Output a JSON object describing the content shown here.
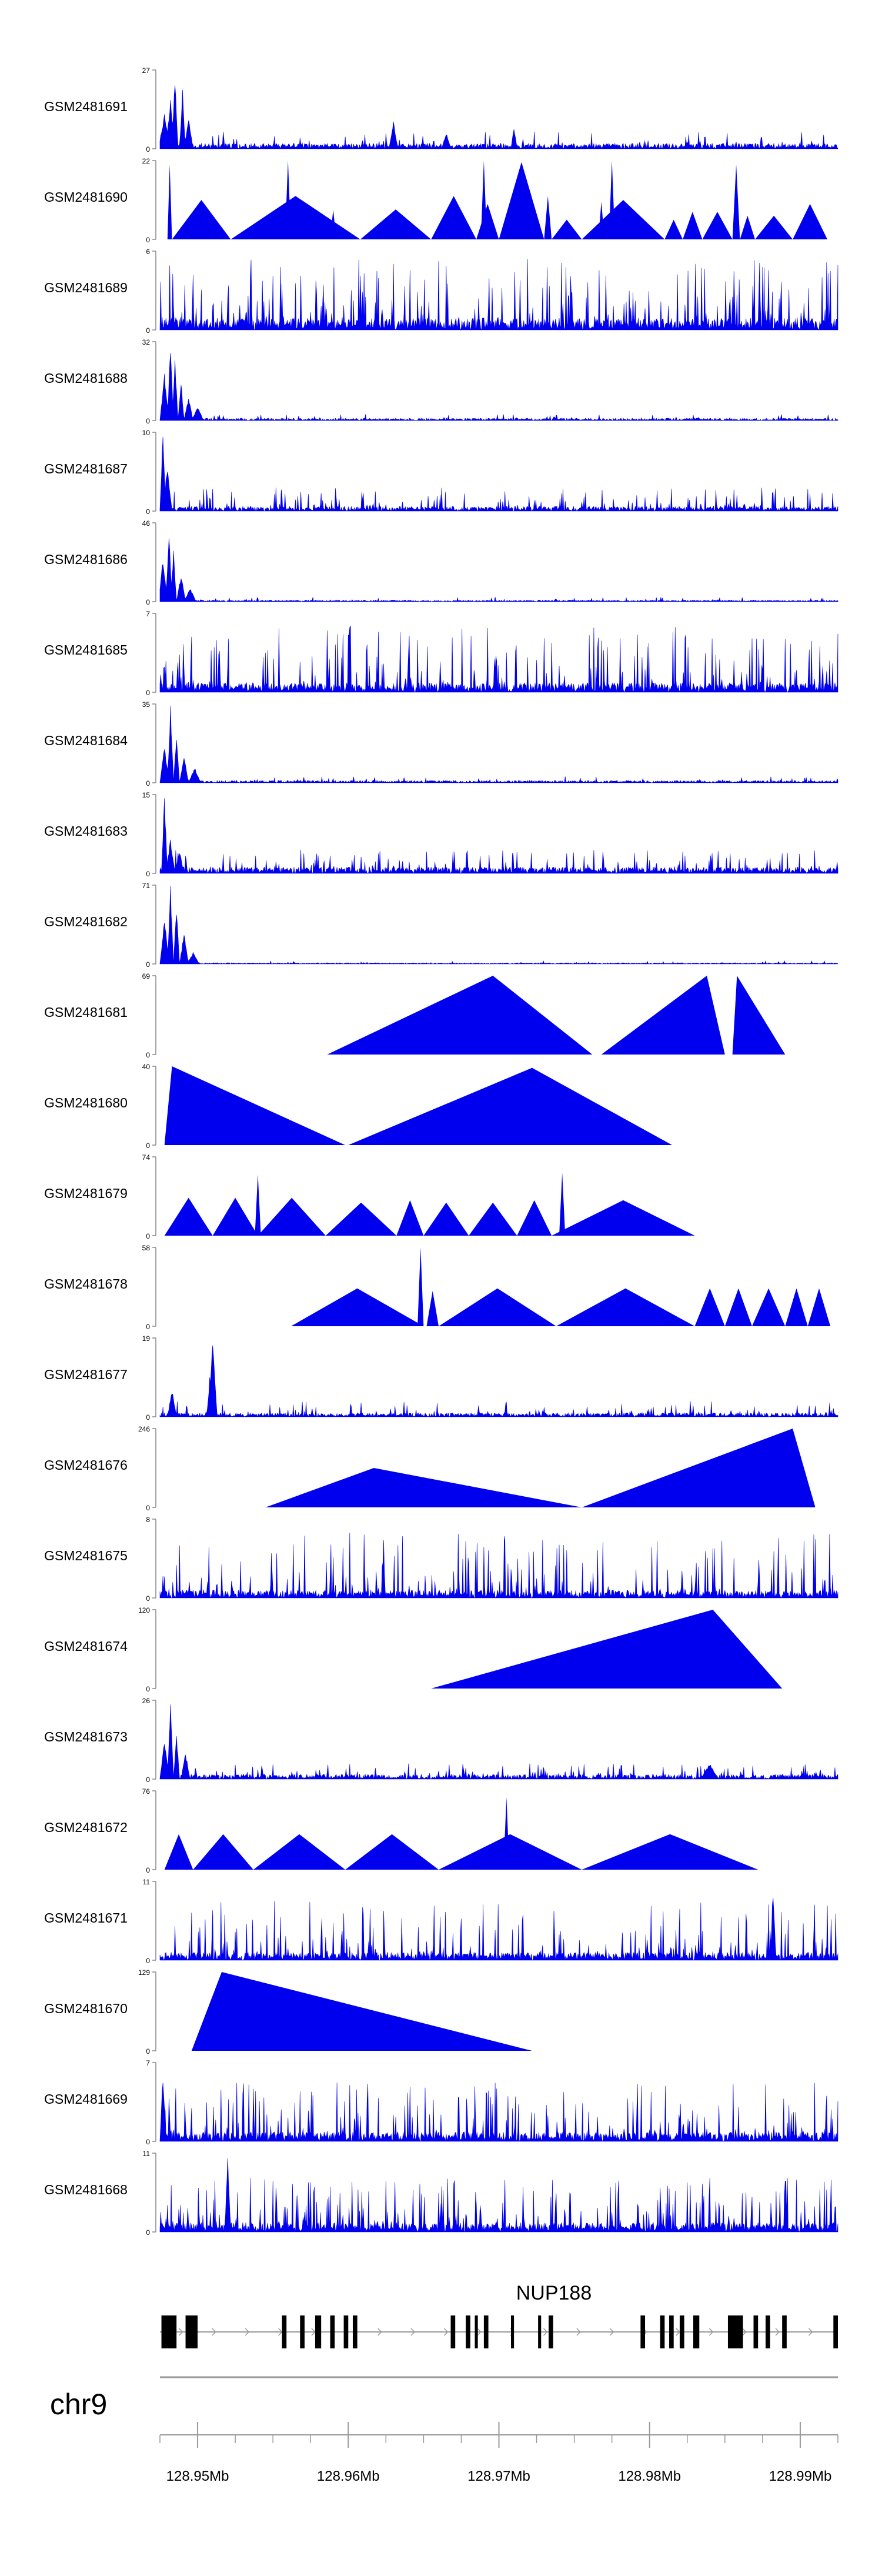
{
  "chart_data": {
    "type": "area",
    "chromosome": "chr9",
    "x_range_mb": [
      128.9475,
      128.9925
    ],
    "x_ticks_mb": [
      128.95,
      128.96,
      128.97,
      128.98,
      128.99
    ],
    "x_tick_labels": [
      "128.95Mb",
      "128.96Mb",
      "128.97Mb",
      "128.98Mb",
      "128.99Mb"
    ],
    "fill_color": "#0000ee",
    "tracks": [
      {
        "name": "GSM2481691",
        "ymax": 27,
        "ymax_label": "27",
        "ymin_label": "0",
        "pattern": "spiky",
        "seed": 1,
        "base": 0.07,
        "spike": 0.22,
        "dens": 0.35,
        "peaks": [
          [
            128.9478,
            0.45,
            0.0004
          ],
          [
            128.9482,
            0.65,
            0.0003
          ],
          [
            128.9485,
            1.0,
            0.0002
          ],
          [
            128.949,
            0.75,
            0.0002
          ],
          [
            128.9494,
            0.4,
            0.0003
          ],
          [
            128.963,
            0.35,
            0.0003
          ],
          [
            128.971,
            0.3,
            0.0002
          ],
          [
            128.9665,
            0.22,
            0.0003
          ]
        ]
      },
      {
        "name": "GSM2481690",
        "ymax": 22,
        "ymax_label": "22",
        "ymin_label": "0",
        "pattern": "triangles",
        "segments": [
          [
            128.948,
            128.9483,
            0.95
          ],
          [
            128.9483,
            128.9522,
            0.5
          ],
          [
            128.9522,
            128.9608,
            0.55
          ],
          [
            128.9608,
            128.9655,
            0.38
          ],
          [
            128.9655,
            128.9685,
            0.55
          ],
          [
            128.9685,
            128.97,
            0.45
          ],
          [
            128.97,
            128.973,
            0.98
          ],
          [
            128.973,
            128.9735,
            0.55
          ],
          [
            128.9735,
            128.9755,
            0.25
          ],
          [
            128.9755,
            128.981,
            0.5
          ],
          [
            128.981,
            128.9822,
            0.25
          ],
          [
            128.9822,
            128.9835,
            0.35
          ],
          [
            128.9835,
            128.9855,
            0.35
          ],
          [
            128.9855,
            128.986,
            0.95
          ],
          [
            128.986,
            128.987,
            0.3
          ],
          [
            128.987,
            128.9895,
            0.3
          ],
          [
            128.9895,
            128.9918,
            0.45
          ]
        ],
        "spikes": [
          [
            128.956,
            1.0
          ],
          [
            128.959,
            0.38
          ],
          [
            128.969,
            1.0
          ],
          [
            128.9768,
            0.48
          ],
          [
            128.9775,
            1.0
          ]
        ]
      },
      {
        "name": "GSM2481689",
        "ymax": 6,
        "ymax_label": "6",
        "ymin_label": "0",
        "pattern": "spiky",
        "seed": 3,
        "base": 0.15,
        "spike": 0.9,
        "dens": 0.85,
        "peaks": []
      },
      {
        "name": "GSM2481688",
        "ymax": 32,
        "ymax_label": "32",
        "ymin_label": "0",
        "pattern": "spiky",
        "seed": 4,
        "base": 0.03,
        "spike": 0.08,
        "dens": 0.3,
        "peaks": [
          [
            128.9478,
            0.6,
            0.0003
          ],
          [
            128.9482,
            1.0,
            0.0002
          ],
          [
            128.9485,
            0.8,
            0.0002
          ],
          [
            128.9489,
            0.55,
            0.0002
          ],
          [
            128.9494,
            0.3,
            0.0003
          ],
          [
            128.95,
            0.18,
            0.0004
          ]
        ]
      },
      {
        "name": "GSM2481687",
        "ymax": 10,
        "ymax_label": "10",
        "ymin_label": "0",
        "pattern": "spiky",
        "seed": 5,
        "base": 0.06,
        "spike": 0.3,
        "dens": 0.55,
        "peaks": [
          [
            128.9477,
            1.0,
            0.0002
          ],
          [
            128.948,
            0.6,
            0.0003
          ]
        ]
      },
      {
        "name": "GSM2481686",
        "ymax": 46,
        "ymax_label": "46",
        "ymin_label": "0",
        "pattern": "spiky",
        "seed": 6,
        "base": 0.02,
        "spike": 0.06,
        "dens": 0.3,
        "peaks": [
          [
            128.9477,
            0.55,
            0.0003
          ],
          [
            128.9481,
            1.0,
            0.0002
          ],
          [
            128.9484,
            0.65,
            0.0002
          ],
          [
            128.9489,
            0.35,
            0.0003
          ],
          [
            128.9495,
            0.18,
            0.0004
          ]
        ]
      },
      {
        "name": "GSM2481685",
        "ymax": 7,
        "ymax_label": "7",
        "ymin_label": "0",
        "pattern": "spiky",
        "seed": 7,
        "base": 0.12,
        "spike": 0.85,
        "dens": 0.75,
        "peaks": []
      },
      {
        "name": "GSM2481684",
        "ymax": 35,
        "ymax_label": "35",
        "ymin_label": "0",
        "pattern": "spiky",
        "seed": 8,
        "base": 0.03,
        "spike": 0.08,
        "dens": 0.3,
        "peaks": [
          [
            128.9478,
            0.5,
            0.0003
          ],
          [
            128.9482,
            1.0,
            0.0002
          ],
          [
            128.9486,
            0.6,
            0.0002
          ],
          [
            128.9491,
            0.35,
            0.0003
          ],
          [
            128.9498,
            0.2,
            0.0004
          ]
        ]
      },
      {
        "name": "GSM2481683",
        "ymax": 15,
        "ymax_label": "15",
        "ymin_label": "0",
        "pattern": "spiky",
        "seed": 9,
        "base": 0.08,
        "spike": 0.3,
        "dens": 0.55,
        "peaks": [
          [
            128.9478,
            1.0,
            0.0002
          ],
          [
            128.9482,
            0.45,
            0.0003
          ],
          [
            128.9488,
            0.3,
            0.0003
          ]
        ]
      },
      {
        "name": "GSM2481682",
        "ymax": 71,
        "ymax_label": "71",
        "ymin_label": "0",
        "pattern": "spiky",
        "seed": 10,
        "base": 0.015,
        "spike": 0.04,
        "dens": 0.25,
        "peaks": [
          [
            128.9478,
            0.6,
            0.0003
          ],
          [
            128.9482,
            1.0,
            0.0002
          ],
          [
            128.9486,
            0.75,
            0.0002
          ],
          [
            128.9491,
            0.4,
            0.0003
          ],
          [
            128.9497,
            0.15,
            0.0004
          ]
        ]
      },
      {
        "name": "GSM2481681",
        "ymax": 69,
        "ymax_label": "69",
        "ymin_label": "0",
        "pattern": "triangles",
        "segments": [
          [
            128.9586,
            128.9762,
            1.0
          ],
          [
            128.9768,
            128.985,
            1.0
          ],
          [
            128.9855,
            128.989,
            1.0
          ]
        ],
        "apex": [
          128.9696,
          128.9838,
          128.9858
        ]
      },
      {
        "name": "GSM2481680",
        "ymax": 40,
        "ymax_label": "40",
        "ymin_label": "0",
        "pattern": "triangles",
        "segments": [
          [
            128.9478,
            128.9598,
            1.0
          ],
          [
            128.96,
            128.9815,
            0.98
          ]
        ],
        "apex": [
          128.9483,
          128.9722
        ]
      },
      {
        "name": "GSM2481679",
        "ymax": 74,
        "ymax_label": "74",
        "ymin_label": "0",
        "pattern": "triangles",
        "segments": [
          [
            128.9478,
            128.951,
            0.48
          ],
          [
            128.951,
            128.954,
            0.48
          ],
          [
            128.954,
            128.9585,
            0.48
          ],
          [
            128.9585,
            128.9632,
            0.42
          ],
          [
            128.9632,
            128.965,
            0.45
          ],
          [
            128.965,
            128.968,
            0.42
          ],
          [
            128.968,
            128.9712,
            0.42
          ],
          [
            128.9712,
            128.9735,
            0.45
          ],
          [
            128.9735,
            128.983,
            0.45
          ]
        ],
        "spikes": [
          [
            128.954,
            0.78
          ],
          [
            128.9742,
            0.8
          ]
        ]
      },
      {
        "name": "GSM2481678",
        "ymax": 58,
        "ymax_label": "58",
        "ymin_label": "0",
        "pattern": "triangles",
        "segments": [
          [
            128.9562,
            128.965,
            0.48
          ],
          [
            128.9652,
            128.966,
            0.45
          ],
          [
            128.966,
            128.9738,
            0.48
          ],
          [
            128.9738,
            128.983,
            0.48
          ],
          [
            128.983,
            128.985,
            0.48
          ],
          [
            128.985,
            128.9868,
            0.48
          ],
          [
            128.9868,
            128.989,
            0.48
          ],
          [
            128.989,
            128.9905,
            0.48
          ],
          [
            128.9905,
            128.992,
            0.48
          ]
        ],
        "spikes": [
          [
            128.9648,
            1.0
          ]
        ]
      },
      {
        "name": "GSM2481677",
        "ymax": 19,
        "ymax_label": "19",
        "ymin_label": "0",
        "pattern": "spiky",
        "seed": 13,
        "base": 0.05,
        "spike": 0.2,
        "dens": 0.45,
        "peaks": [
          [
            128.9483,
            0.35,
            0.0003
          ],
          [
            128.951,
            1.0,
            0.0003
          ],
          [
            128.9508,
            0.5,
            0.0002
          ]
        ]
      },
      {
        "name": "GSM2481676",
        "ymax": 246,
        "ymax_label": "246",
        "ymin_label": "0",
        "pattern": "triangles",
        "segments": [
          [
            128.9545,
            128.9755,
            0.5
          ],
          [
            128.9755,
            128.991,
            1.0
          ]
        ],
        "apex": [
          128.9617,
          128.9895
        ]
      },
      {
        "name": "GSM2481675",
        "ymax": 8,
        "ymax_label": "8",
        "ymin_label": "0",
        "pattern": "spiky",
        "seed": 15,
        "base": 0.1,
        "spike": 0.85,
        "dens": 0.65,
        "peaks": []
      },
      {
        "name": "GSM2481674",
        "ymax": 120,
        "ymax_label": "120",
        "ymin_label": "0",
        "pattern": "triangles",
        "segments": [
          [
            128.9655,
            128.9888,
            1.0
          ]
        ],
        "apex": [
          128.9842
        ]
      },
      {
        "name": "GSM2481673",
        "ymax": 26,
        "ymax_label": "26",
        "ymin_label": "0",
        "pattern": "spiky",
        "seed": 17,
        "base": 0.06,
        "spike": 0.2,
        "dens": 0.5,
        "peaks": [
          [
            128.9478,
            0.55,
            0.0003
          ],
          [
            128.9482,
            1.0,
            0.0002
          ],
          [
            128.9486,
            0.6,
            0.0002
          ],
          [
            128.9492,
            0.35,
            0.0003
          ],
          [
            128.984,
            0.2,
            0.0006
          ]
        ]
      },
      {
        "name": "GSM2481672",
        "ymax": 76,
        "ymax_label": "76",
        "ymin_label": "0",
        "pattern": "triangles",
        "segments": [
          [
            128.9478,
            128.9497,
            0.45
          ],
          [
            128.9497,
            128.9537,
            0.45
          ],
          [
            128.9537,
            128.9598,
            0.45
          ],
          [
            128.9598,
            128.966,
            0.45
          ],
          [
            128.966,
            128.9755,
            0.45
          ],
          [
            128.9755,
            128.9872,
            0.45
          ]
        ],
        "spikes": [
          [
            128.9705,
            0.92
          ]
        ]
      },
      {
        "name": "GSM2481671",
        "ymax": 11,
        "ymax_label": "11",
        "ymin_label": "0",
        "pattern": "spiky",
        "seed": 19,
        "base": 0.1,
        "spike": 0.75,
        "dens": 0.55,
        "peaks": [
          [
            128.9882,
            0.85,
            0.0002
          ]
        ]
      },
      {
        "name": "GSM2481670",
        "ymax": 129,
        "ymax_label": "129",
        "ymin_label": "0",
        "pattern": "triangles",
        "segments": [
          [
            128.9496,
            128.9722,
            1.0
          ]
        ],
        "apex": [
          128.9516
        ]
      },
      {
        "name": "GSM2481669",
        "ymax": 7,
        "ymax_label": "7",
        "ymin_label": "0",
        "pattern": "spiky",
        "seed": 21,
        "base": 0.12,
        "spike": 0.75,
        "dens": 0.8,
        "peaks": [
          [
            128.9477,
            0.9,
            0.0002
          ]
        ]
      },
      {
        "name": "GSM2481668",
        "ymax": 11,
        "ymax_label": "11",
        "ymin_label": "0",
        "pattern": "spiky",
        "seed": 22,
        "base": 0.12,
        "spike": 0.7,
        "dens": 0.75,
        "peaks": [
          [
            128.952,
            0.95,
            0.0002
          ]
        ]
      }
    ],
    "gene": {
      "name": "NUP188",
      "start": 128.9475,
      "end": 128.9925,
      "strand": "+",
      "exons": [
        [
          128.9476,
          128.9486
        ],
        [
          128.9492,
          128.95
        ],
        [
          128.9556,
          128.9559
        ],
        [
          128.9568,
          128.9571
        ],
        [
          128.9578,
          128.9582
        ],
        [
          128.9588,
          128.9591
        ],
        [
          128.9597,
          128.96
        ],
        [
          128.9603,
          128.9606
        ],
        [
          128.9668,
          128.9671
        ],
        [
          128.9678,
          128.9681
        ],
        [
          128.9684,
          128.9686
        ],
        [
          128.969,
          128.9693
        ],
        [
          128.9708,
          128.971
        ],
        [
          128.9726,
          128.9728
        ],
        [
          128.9733,
          128.9736
        ],
        [
          128.9794,
          128.9797
        ],
        [
          128.9807,
          128.981
        ],
        [
          128.9813,
          128.9816
        ],
        [
          128.982,
          128.9823
        ],
        [
          128.9829,
          128.9833
        ],
        [
          128.9852,
          128.9862
        ],
        [
          128.9869,
          128.9872
        ],
        [
          128.9877,
          128.988
        ],
        [
          128.9888,
          128.9891
        ],
        [
          128.9922,
          128.9925
        ]
      ]
    }
  }
}
